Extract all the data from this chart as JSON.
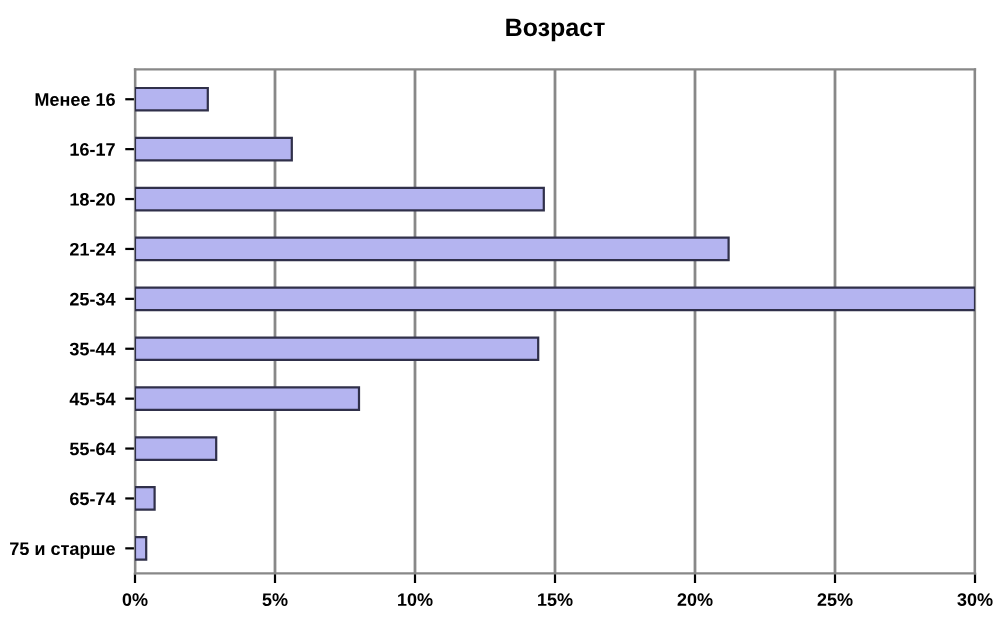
{
  "chart_data": {
    "type": "bar",
    "orientation": "horizontal",
    "title": "Возраст",
    "categories": [
      "Менее 16",
      "16-17",
      "18-20",
      "21-24",
      "25-34",
      "35-44",
      "45-54",
      "55-64",
      "65-74",
      "75 и старше"
    ],
    "values": [
      2.6,
      5.6,
      14.6,
      21.2,
      30.0,
      14.4,
      8.0,
      2.9,
      0.7,
      0.4
    ],
    "color": "#b4b4f0",
    "xlim": [
      0,
      30
    ],
    "xticks": [
      {
        "value": 0,
        "label": "0%"
      },
      {
        "value": 5,
        "label": "5%"
      },
      {
        "value": 10,
        "label": "10%"
      },
      {
        "value": 15,
        "label": "15%"
      },
      {
        "value": 20,
        "label": "20%"
      },
      {
        "value": 25,
        "label": "25%"
      },
      {
        "value": 30,
        "label": "30%"
      }
    ],
    "grid": "x"
  }
}
